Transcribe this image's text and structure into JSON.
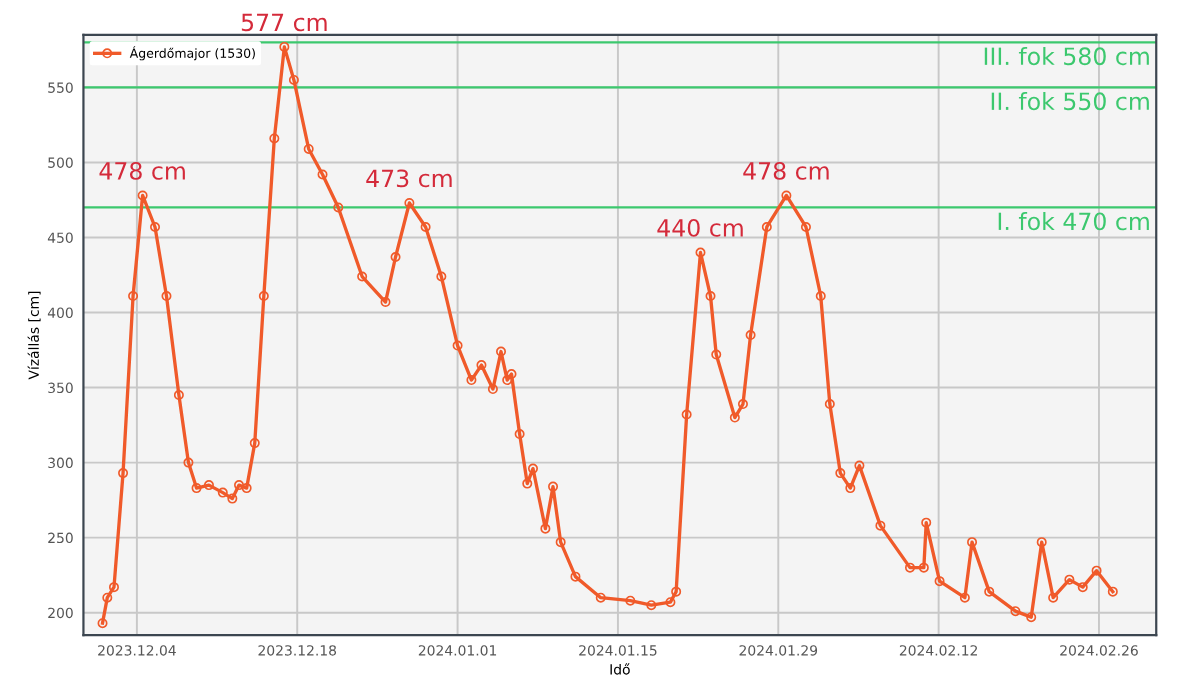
{
  "chart_data": {
    "type": "line",
    "xlabel": "Idő",
    "ylabel": "Vízállás [cm]",
    "x": [
      "2023-12-01T00:00",
      "2023-12-01T10:00",
      "2023-12-02T00:00",
      "2023-12-02T19:00",
      "2023-12-03T16:00",
      "2023-12-04T12:00",
      "2023-12-05T14:00",
      "2023-12-06T14:00",
      "2023-12-07T16:00",
      "2023-12-08T12:00",
      "2023-12-09T05:00",
      "2023-12-10T07:00",
      "2023-12-11T12:00",
      "2023-12-12T08:00",
      "2023-12-12T22:00",
      "2023-12-13T14:00",
      "2023-12-14T07:00",
      "2023-12-15T02:00",
      "2023-12-16T00:00",
      "2023-12-16T21:00",
      "2023-12-17T17:00",
      "2023-12-19T00:00",
      "2023-12-20T05:00",
      "2023-12-21T14:00",
      "2023-12-23T16:00",
      "2023-12-25T17:00",
      "2023-12-26T14:00",
      "2023-12-27T19:00",
      "2023-12-29T05:00",
      "2023-12-30T14:00",
      "2024-01-01T00:00",
      "2024-01-02T05:00",
      "2024-01-03T02:00",
      "2024-01-04T02:00",
      "2024-01-04T19:00",
      "2024-01-05T08:00",
      "2024-01-05T17:00",
      "2024-01-06T10:00",
      "2024-01-07T02:00",
      "2024-01-07T14:00",
      "2024-01-08T16:00",
      "2024-01-09T08:00",
      "2024-01-10T00:00",
      "2024-01-11T07:00",
      "2024-01-13T12:00",
      "2024-01-16T02:00",
      "2024-01-17T22:00",
      "2024-01-19T14:00",
      "2024-01-20T02:00",
      "2024-01-21T00:00",
      "2024-01-22T05:00",
      "2024-01-23T02:00",
      "2024-01-23T14:00",
      "2024-01-25T05:00",
      "2024-01-25T22:00",
      "2024-01-26T14:00",
      "2024-01-28T00:00",
      "2024-01-29T17:00",
      "2024-01-31T10:00",
      "2024-02-01T17:00",
      "2024-02-02T12:00",
      "2024-02-03T10:00",
      "2024-02-04T07:00",
      "2024-02-05T02:00",
      "2024-02-06T22:00",
      "2024-02-09T12:00",
      "2024-02-10T17:00",
      "2024-02-10T22:00",
      "2024-02-12T02:00",
      "2024-02-14T07:00",
      "2024-02-14T22:00",
      "2024-02-16T10:00",
      "2024-02-18T17:00",
      "2024-02-20T02:00",
      "2024-02-21T00:00",
      "2024-02-22T00:00",
      "2024-02-23T10:00",
      "2024-02-24T14:00",
      "2024-02-25T19:00",
      "2024-02-27T05:00"
    ],
    "series": [
      {
        "name": "Ágerdőmajor (1530)",
        "color": "#f05a2a",
        "values": [
          193,
          210,
          217,
          293,
          411,
          478,
          457,
          411,
          345,
          300,
          283,
          285,
          280,
          276,
          285,
          283,
          313,
          411,
          516,
          577,
          555,
          509,
          492,
          470,
          424,
          407,
          437,
          473,
          457,
          424,
          378,
          355,
          365,
          349,
          374,
          355,
          359,
          319,
          286,
          296,
          256,
          284,
          247,
          224,
          210,
          208,
          205,
          207,
          214,
          332,
          440,
          411,
          372,
          330,
          339,
          385,
          457,
          478,
          457,
          411,
          339,
          293,
          283,
          298,
          258,
          230,
          230,
          260,
          221,
          210,
          247,
          214,
          201,
          197,
          247,
          210,
          222,
          217,
          228,
          214
        ]
      }
    ],
    "xlim": [
      "2023-11-29T08:00",
      "2024-03-02T00:00"
    ],
    "ylim": [
      185,
      585
    ],
    "xticks": [
      {
        "value": "2023-12-04",
        "label": "2023.12.04"
      },
      {
        "value": "2023-12-18",
        "label": "2023.12.18"
      },
      {
        "value": "2024-01-01",
        "label": "2024.01.01"
      },
      {
        "value": "2024-01-15",
        "label": "2024.01.15"
      },
      {
        "value": "2024-01-29",
        "label": "2024.01.29"
      },
      {
        "value": "2024-02-12",
        "label": "2024.02.12"
      },
      {
        "value": "2024-02-26",
        "label": "2024.02.26"
      }
    ],
    "yticks": [
      200,
      250,
      300,
      350,
      400,
      450,
      500,
      550
    ],
    "ref_lines": [
      {
        "axis": "y",
        "value": 580,
        "label": "III. fok 580 cm",
        "color": "#3cc86e"
      },
      {
        "axis": "y",
        "value": 550,
        "label": "II. fok 550 cm",
        "color": "#3cc86e"
      },
      {
        "axis": "y",
        "value": 470,
        "label": "I. fok 470 cm",
        "color": "#3cc86e"
      }
    ],
    "annotations": [
      {
        "text": "478 cm",
        "x": "2023-12-04T12:00",
        "y": 478
      },
      {
        "text": "577 cm",
        "x": "2023-12-16T21:00",
        "y": 577
      },
      {
        "text": "473 cm",
        "x": "2023-12-27T19:00",
        "y": 473
      },
      {
        "text": "440 cm",
        "x": "2024-01-22T05:00",
        "y": 440
      },
      {
        "text": "478 cm",
        "x": "2024-01-29T17:00",
        "y": 478
      }
    ],
    "grid": true,
    "legend": "top left",
    "marker": "circle",
    "line_style": "solid"
  }
}
